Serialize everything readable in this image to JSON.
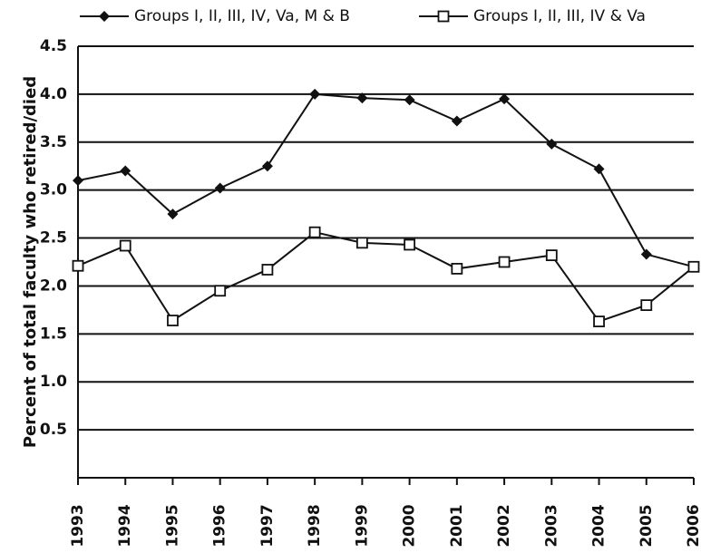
{
  "chart_data": {
    "type": "line",
    "y_label": "Percent of total faculty who retired/died",
    "categories": [
      "1993",
      "1994",
      "1995",
      "1996",
      "1997",
      "1998",
      "1999",
      "2000",
      "2001",
      "2002",
      "2003",
      "2004",
      "2005",
      "2006"
    ],
    "series": [
      {
        "name": "Groups I, II, III, IV, Va, M & B",
        "color": "#111111",
        "marker": "diamond",
        "values": [
          3.1,
          3.2,
          2.75,
          3.02,
          3.25,
          4.0,
          3.96,
          3.94,
          3.72,
          3.95,
          3.48,
          3.22,
          2.33,
          2.2
        ]
      },
      {
        "name": "Groups I, II, III, IV & Va",
        "color": "#111111",
        "marker": "square",
        "values": [
          2.21,
          2.42,
          1.64,
          1.95,
          2.17,
          2.56,
          2.45,
          2.43,
          2.18,
          2.25,
          2.32,
          1.63,
          1.8,
          2.2
        ]
      }
    ],
    "ylim": [
      0,
      4.5
    ],
    "yticks": [
      {
        "value": 0.5,
        "label": "0.5"
      },
      {
        "value": 1,
        "label": "1.0"
      },
      {
        "value": 1.5,
        "label": "1.5"
      },
      {
        "value": 2,
        "label": "2.0"
      },
      {
        "value": 2.5,
        "label": "2.5"
      },
      {
        "value": 3,
        "label": "3.0"
      },
      {
        "value": 3.5,
        "label": "3.5"
      },
      {
        "value": 4,
        "label": "4.0"
      },
      {
        "value": 4.5,
        "label": "4.5"
      }
    ],
    "grid": true,
    "legend": "top"
  }
}
